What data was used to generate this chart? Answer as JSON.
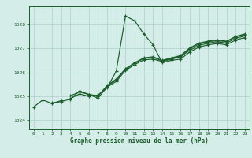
{
  "title": "Graphe pression niveau de la mer (hPa)",
  "bg_color": "#d4ede8",
  "grid_color": "#b0cfca",
  "line_color": "#1a5c2a",
  "xlim": [
    -0.5,
    23.5
  ],
  "ylim": [
    1023.65,
    1028.75
  ],
  "xticks": [
    0,
    1,
    2,
    3,
    4,
    5,
    6,
    7,
    8,
    9,
    10,
    11,
    12,
    13,
    14,
    15,
    16,
    17,
    18,
    19,
    20,
    21,
    22,
    23
  ],
  "yticks": [
    1024,
    1025,
    1026,
    1027,
    1028
  ],
  "series1": [
    [
      0,
      1024.55
    ],
    [
      1,
      1024.85
    ],
    [
      2,
      1024.7
    ],
    [
      3,
      1024.82
    ],
    [
      4,
      1024.9
    ],
    [
      5,
      1025.1
    ],
    [
      6,
      1025.0
    ],
    [
      7,
      1025.05
    ],
    [
      8,
      1025.35
    ],
    [
      9,
      1026.05
    ],
    [
      10,
      1028.35
    ],
    [
      11,
      1028.15
    ],
    [
      12,
      1027.6
    ],
    [
      13,
      1027.15
    ],
    [
      14,
      1026.4
    ],
    [
      15,
      1026.5
    ],
    [
      16,
      1026.55
    ],
    [
      17,
      1026.85
    ],
    [
      18,
      1027.05
    ],
    [
      19,
      1027.15
    ],
    [
      20,
      1027.2
    ],
    [
      21,
      1027.15
    ],
    [
      22,
      1027.35
    ],
    [
      23,
      1027.45
    ]
  ],
  "series2": [
    [
      2,
      1024.72
    ],
    [
      3,
      1024.78
    ],
    [
      4,
      1024.88
    ],
    [
      5,
      1025.22
    ],
    [
      6,
      1025.08
    ],
    [
      7,
      1024.92
    ],
    [
      8,
      1025.38
    ],
    [
      9,
      1025.62
    ],
    [
      10,
      1026.08
    ],
    [
      11,
      1026.32
    ],
    [
      12,
      1026.52
    ],
    [
      13,
      1026.55
    ],
    [
      14,
      1026.45
    ],
    [
      15,
      1026.55
    ],
    [
      16,
      1026.65
    ],
    [
      17,
      1026.92
    ],
    [
      18,
      1027.12
    ],
    [
      19,
      1027.22
    ],
    [
      20,
      1027.28
    ],
    [
      21,
      1027.22
    ],
    [
      22,
      1027.42
    ],
    [
      23,
      1027.52
    ]
  ],
  "series3": [
    [
      4,
      1025.02
    ],
    [
      5,
      1025.18
    ],
    [
      6,
      1025.08
    ],
    [
      7,
      1025.02
    ],
    [
      8,
      1025.42
    ],
    [
      9,
      1025.68
    ],
    [
      10,
      1026.12
    ],
    [
      11,
      1026.38
    ],
    [
      12,
      1026.58
    ],
    [
      13,
      1026.62
    ],
    [
      14,
      1026.48
    ],
    [
      15,
      1026.58
    ],
    [
      16,
      1026.68
    ],
    [
      17,
      1026.98
    ],
    [
      18,
      1027.18
    ],
    [
      19,
      1027.28
    ],
    [
      20,
      1027.32
    ],
    [
      21,
      1027.28
    ],
    [
      22,
      1027.48
    ],
    [
      23,
      1027.58
    ]
  ],
  "series4": [
    [
      6,
      1025.05
    ],
    [
      7,
      1025.0
    ],
    [
      8,
      1025.45
    ],
    [
      9,
      1025.72
    ],
    [
      10,
      1026.15
    ],
    [
      11,
      1026.4
    ],
    [
      12,
      1026.6
    ],
    [
      13,
      1026.65
    ],
    [
      14,
      1026.5
    ],
    [
      15,
      1026.6
    ],
    [
      16,
      1026.7
    ],
    [
      17,
      1027.02
    ],
    [
      18,
      1027.22
    ],
    [
      19,
      1027.3
    ],
    [
      20,
      1027.35
    ],
    [
      21,
      1027.3
    ],
    [
      22,
      1027.5
    ],
    [
      23,
      1027.6
    ]
  ]
}
